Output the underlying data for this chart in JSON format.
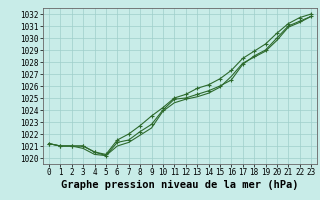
{
  "xlabel": "Graphe pression niveau de la mer (hPa)",
  "x_values": [
    0,
    1,
    2,
    3,
    4,
    5,
    6,
    7,
    8,
    9,
    10,
    11,
    12,
    13,
    14,
    15,
    16,
    17,
    18,
    19,
    20,
    21,
    22,
    23
  ],
  "y_line1": [
    1021.2,
    1021.0,
    1021.0,
    1021.0,
    1020.5,
    1020.2,
    1021.3,
    1021.5,
    1022.2,
    1022.8,
    1024.0,
    1024.9,
    1025.0,
    1025.3,
    1025.6,
    1026.0,
    1026.5,
    1027.8,
    1028.5,
    1029.0,
    1030.0,
    1031.0,
    1031.4,
    1031.8
  ],
  "y_line2": [
    1021.2,
    1021.0,
    1021.0,
    1020.8,
    1020.3,
    1020.2,
    1021.0,
    1021.3,
    1021.9,
    1022.5,
    1023.9,
    1024.6,
    1024.9,
    1025.1,
    1025.4,
    1025.9,
    1026.8,
    1027.9,
    1028.4,
    1028.9,
    1029.8,
    1030.9,
    1031.3,
    1031.8
  ],
  "y_line3": [
    1021.2,
    1021.0,
    1021.0,
    1021.0,
    1020.5,
    1020.3,
    1021.5,
    1022.0,
    1022.7,
    1023.5,
    1024.2,
    1025.0,
    1025.3,
    1025.8,
    1026.1,
    1026.6,
    1027.3,
    1028.3,
    1028.9,
    1029.5,
    1030.4,
    1031.2,
    1031.7,
    1032.0
  ],
  "ylim": [
    1019.5,
    1032.5
  ],
  "yticks": [
    1020,
    1021,
    1022,
    1023,
    1024,
    1025,
    1026,
    1027,
    1028,
    1029,
    1030,
    1031,
    1032
  ],
  "bg_color": "#c8ece8",
  "grid_color": "#9fcfcb",
  "line_color": "#2d6a2d",
  "title_fontsize": 7.5,
  "tick_fontsize": 5.5
}
